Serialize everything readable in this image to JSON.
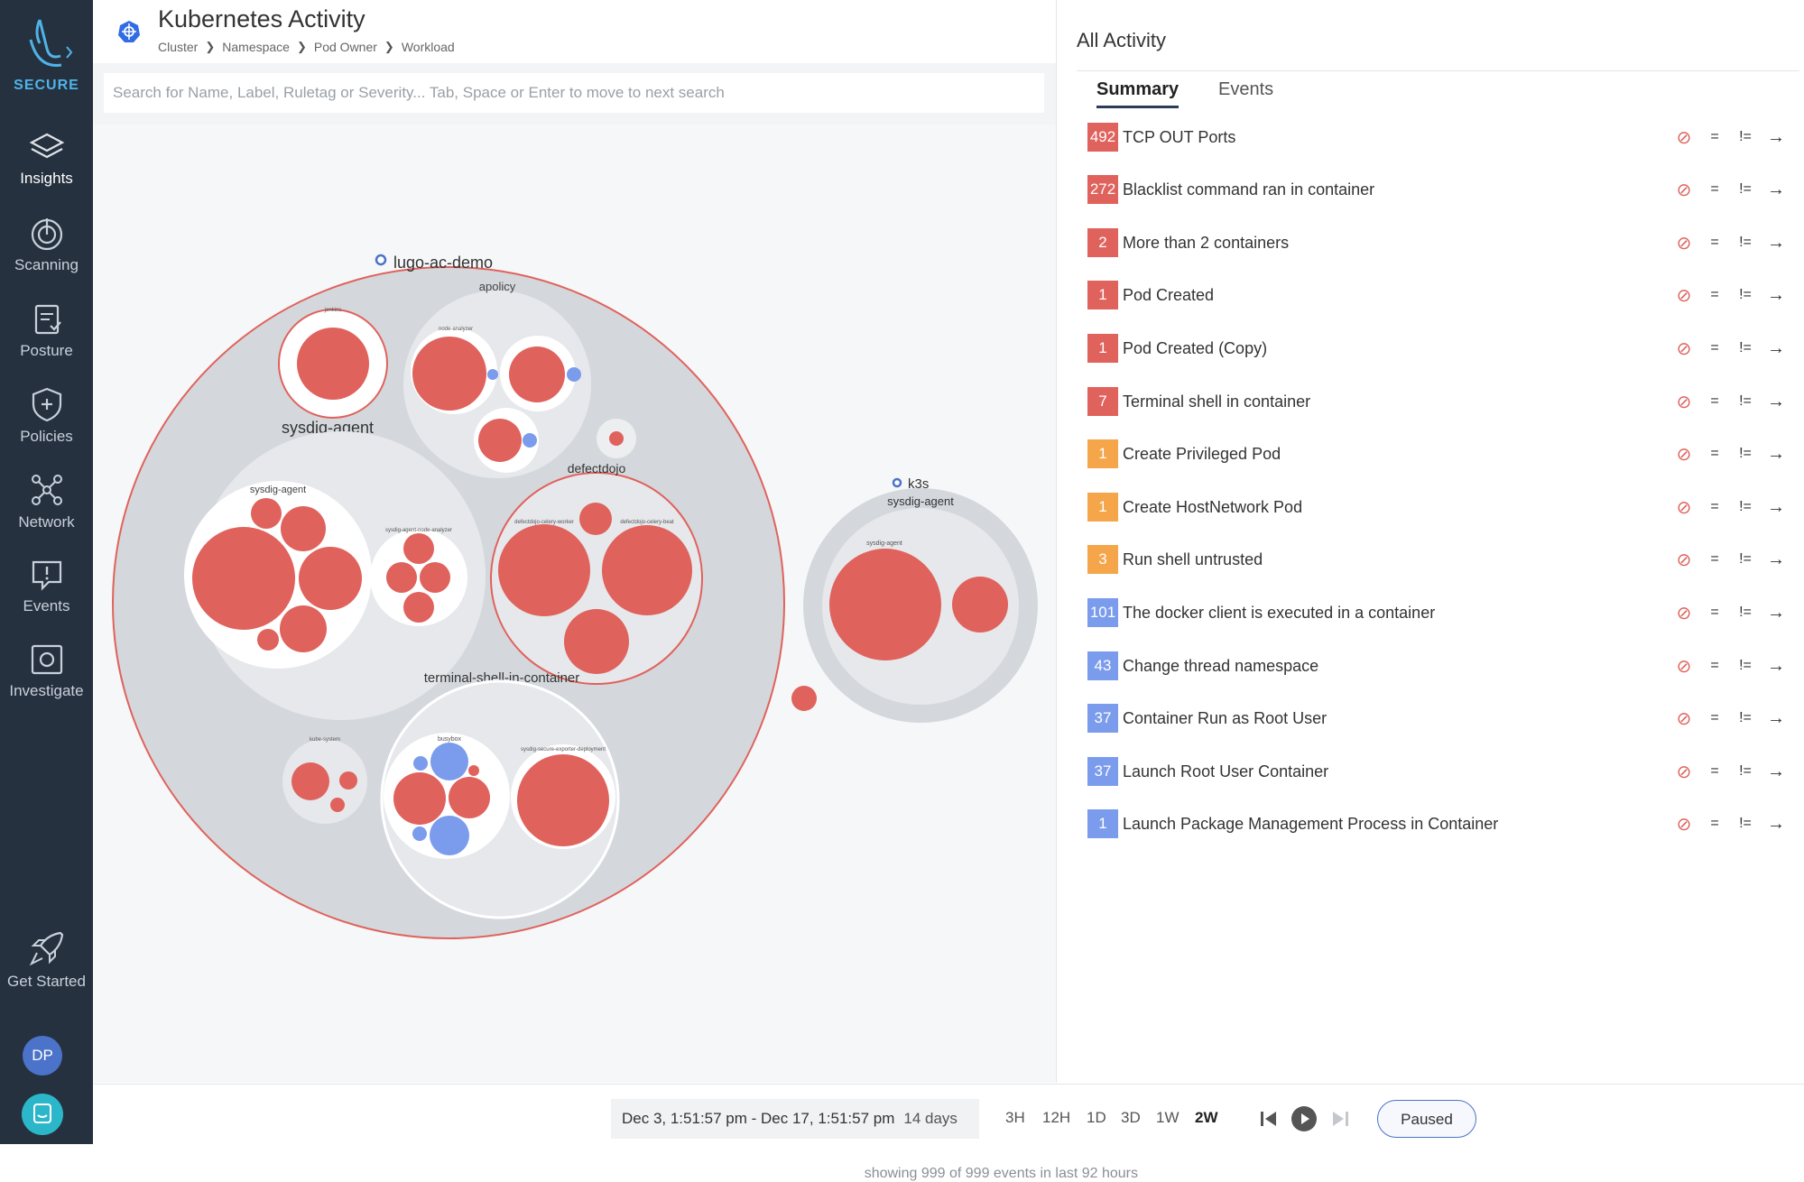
{
  "sidebar": {
    "product": "SECURE",
    "items": [
      {
        "label": "Insights",
        "icon": "layers-icon"
      },
      {
        "label": "Scanning",
        "icon": "scan-icon"
      },
      {
        "label": "Posture",
        "icon": "clipboard-icon"
      },
      {
        "label": "Policies",
        "icon": "shield-icon"
      },
      {
        "label": "Network",
        "icon": "network-icon"
      },
      {
        "label": "Events",
        "icon": "events-icon"
      },
      {
        "label": "Investigate",
        "icon": "investigate-icon"
      }
    ],
    "get_started": "Get Started",
    "avatar_initials": "DP"
  },
  "header": {
    "title": "Kubernetes Activity",
    "breadcrumb": [
      "Cluster",
      "Namespace",
      "Pod Owner",
      "Workload"
    ],
    "search_placeholder": "Search for Name, Label, Ruletag or Severity... Tab, Space or Enter to move to next search"
  },
  "visualization": {
    "clusters": [
      "lugo-ac-demo",
      "k3s"
    ],
    "labels": {
      "apolicy": "apolicy",
      "sysdig_agent_main": "sysdig-agent",
      "defectdojo": "defectdojo",
      "sysdig_agent_sub": "sysdig-agent",
      "terminal": "terminal-shell-in-container",
      "k3s_agent": "sysdig-agent",
      "k3s_agent_sub": "sysdig-agent",
      "jenkins": "jenkins",
      "node_analyzer": "node-analyzer",
      "node_analyzer2": "sysdig-agent-node-analyzer",
      "celery_worker": "defectdojo-celery-worker",
      "celery_beat": "defectdojo-celery-beat",
      "kube_system": "kube-system",
      "busybox": "busybox",
      "secure_exporter": "sysdig-secure-exporter-deployment"
    },
    "showing_text": "showing 999 of 999 events in last 92 hours"
  },
  "activity": {
    "title": "All Activity",
    "tabs": [
      "Summary",
      "Events"
    ],
    "actions": {
      "exclude": "⊘",
      "eq": "=",
      "neq": "!=",
      "go": "→"
    },
    "items": [
      {
        "count": "492",
        "label": "TCP OUT Ports",
        "severity": "high"
      },
      {
        "count": "272",
        "label": "Blacklist command ran in container",
        "severity": "high"
      },
      {
        "count": "2",
        "label": "More than 2 containers",
        "severity": "high"
      },
      {
        "count": "1",
        "label": "Pod Created",
        "severity": "high"
      },
      {
        "count": "1",
        "label": "Pod Created (Copy)",
        "severity": "high"
      },
      {
        "count": "7",
        "label": "Terminal shell in container",
        "severity": "high"
      },
      {
        "count": "1",
        "label": "Create Privileged Pod",
        "severity": "medium"
      },
      {
        "count": "1",
        "label": "Create HostNetwork Pod",
        "severity": "medium"
      },
      {
        "count": "3",
        "label": "Run shell untrusted",
        "severity": "medium"
      },
      {
        "count": "101",
        "label": "The docker client is executed in a container",
        "severity": "low"
      },
      {
        "count": "43",
        "label": "Change thread namespace",
        "severity": "low"
      },
      {
        "count": "37",
        "label": "Container Run as Root User",
        "severity": "low"
      },
      {
        "count": "37",
        "label": "Launch Root User Container",
        "severity": "low"
      },
      {
        "count": "1",
        "label": "Launch Package Management Process in Container",
        "severity": "low"
      }
    ]
  },
  "footer": {
    "date_range": "Dec 3, 1:51:57 pm - Dec 17, 1:51:57 pm",
    "days": "14 days",
    "ranges": [
      "3H",
      "12H",
      "1D",
      "3D",
      "1W",
      "2W"
    ],
    "active_range": "2W",
    "paused_label": "Paused"
  },
  "colors": {
    "high": "#e0625c",
    "medium": "#f5a54a",
    "low": "#7b9cec",
    "sidebar_bg": "#26313f"
  }
}
